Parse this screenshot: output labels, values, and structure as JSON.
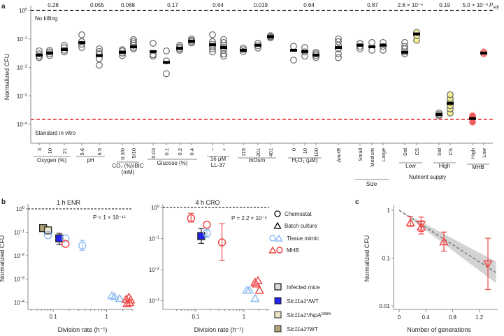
{
  "panel_labels": {
    "a": "a",
    "b": "b",
    "c": "c"
  },
  "colors": {
    "grey": "#666666",
    "yellow": "#f5ef8a",
    "red": "#f04848",
    "lightblue": "#8fbdf0",
    "blue": "#2222ee",
    "infected": "#d8d8d8",
    "hipA": "#ece5c8",
    "slc_r": "#b3a578"
  },
  "chart_data": [
    {
      "id": "a",
      "type": "scatter",
      "ylabel": "Normalized CFU",
      "yscale": "log",
      "ylim": [
        3e-05,
        1
      ],
      "ytick_labels": [
        "10^0",
        "10^-1",
        "10^-2",
        "10^-3",
        "10^-4"
      ],
      "ref_lines": [
        {
          "label": "No killing",
          "value": 1,
          "color": "#000000"
        },
        {
          "label": "Standard in vitro",
          "value": 0.00015,
          "color": "#f02020"
        }
      ],
      "p_adj_label": "P",
      "p_adj_sub": "adj",
      "p_values": [
        "0.28",
        "0.055",
        "0.068",
        "0.17",
        "0.64",
        "0.019",
        "0.64",
        "0.87",
        "2.6 × 10⁻⁶",
        "0.19",
        "5.0 × 10⁻⁹"
      ],
      "columns": [
        {
          "label": "3",
          "median": 0.027,
          "points": [
            0.022,
            0.025,
            0.03,
            0.038
          ],
          "color": "grey"
        },
        {
          "label": "10",
          "median": 0.032,
          "points": [
            0.026,
            0.03,
            0.035,
            0.04
          ],
          "color": "grey"
        },
        {
          "label": "21",
          "median": 0.042,
          "points": [
            0.035,
            0.04,
            0.05,
            0.06
          ],
          "color": "grey"
        },
        {
          "label": "5.6",
          "median": 0.074,
          "points": [
            0.05,
            0.065,
            0.08,
            0.14
          ],
          "color": "grey"
        },
        {
          "label": "6.5",
          "median": 0.026,
          "points": [
            0.012,
            0.02,
            0.03,
            0.036,
            0.045
          ],
          "color": "grey"
        },
        {
          "label": "0.3/0",
          "median": 0.034,
          "points": [
            0.026,
            0.032,
            0.038,
            0.042
          ],
          "color": "grey"
        },
        {
          "label": "5/10",
          "median": 0.053,
          "points": [
            0.045,
            0.05,
            0.06,
            0.07,
            0.08,
            0.095
          ],
          "color": "grey"
        },
        {
          "label": "0.03",
          "median": 0.036,
          "points": [
            0.025,
            0.028,
            0.07
          ],
          "color": "grey"
        },
        {
          "label": "0.1",
          "median": 0.015,
          "points": [
            0.006,
            0.017,
            0.038
          ],
          "color": "grey"
        },
        {
          "label": "0.2",
          "median": 0.047,
          "points": [
            0.04,
            0.045,
            0.052,
            0.06
          ],
          "color": "grey"
        },
        {
          "label": "0.4",
          "median": 0.083,
          "points": [
            0.072,
            0.08,
            0.09,
            0.1
          ],
          "color": "grey"
        },
        {
          "label": "−",
          "median": 0.063,
          "points": [
            0.035,
            0.045,
            0.055,
            0.065,
            0.08,
            0.14
          ],
          "color": "grey"
        },
        {
          "label": "+",
          "median": 0.05,
          "points": [
            0.025,
            0.03,
            0.04,
            0.05,
            0.06,
            0.075,
            0.095
          ],
          "color": "grey"
        },
        {
          "label": "115",
          "median": 0.04,
          "points": [
            0.036,
            0.042,
            0.048
          ],
          "color": "grey"
        },
        {
          "label": "201",
          "median": 0.06,
          "points": [
            0.048,
            0.058,
            0.07
          ],
          "color": "grey"
        },
        {
          "label": "401",
          "median": 0.12,
          "points": [
            0.11,
            0.12,
            0.13
          ],
          "color": "grey"
        },
        {
          "label": "0",
          "median": 0.04,
          "points": [
            0.018,
            0.055
          ],
          "color": "grey"
        },
        {
          "label": "10",
          "median": 0.036,
          "points": [
            0.025,
            0.035,
            0.05
          ],
          "color": "grey"
        },
        {
          "label": "100",
          "median": 0.027,
          "points": [
            0.022,
            0.026,
            0.03,
            0.034
          ],
          "color": "grey"
        },
        {
          "label": "ΔacrB",
          "median": 0.05,
          "points": [
            0.022,
            0.03,
            0.045,
            0.06,
            0.08,
            0.1
          ],
          "color": "grey"
        },
        {
          "label": "Small",
          "median": 0.06,
          "points": [
            0.045,
            0.055,
            0.07
          ],
          "color": "grey"
        },
        {
          "label": "Medium",
          "median": 0.053,
          "points": [
            0.04,
            0.075
          ],
          "color": "grey"
        },
        {
          "label": "Large",
          "median": 0.06,
          "points": [
            0.04,
            0.055,
            0.075
          ],
          "color": "grey"
        },
        {
          "label": "Std",
          "median": 0.034,
          "points": [
            0.03,
            0.035,
            0.045,
            0.055,
            0.075
          ],
          "color": "grey"
        },
        {
          "label": "CS",
          "median": 0.15,
          "points": [
            0.09,
            0.13,
            0.17
          ],
          "color": "yellow"
        },
        {
          "label": "Std",
          "median": 0.00022,
          "points": [
            0.0002,
            0.00022,
            0.00025
          ],
          "color": "grey"
        },
        {
          "label": "CS",
          "median": 0.00055,
          "points": [
            0.00025,
            0.00035,
            0.00045,
            0.0006,
            0.0008,
            0.0011
          ],
          "color": "yellow"
        },
        {
          "label": "High",
          "median": 0.00016,
          "points": [
            0.00012,
            0.0002
          ],
          "color": "red"
        },
        {
          "label": "Low",
          "median": 0.032,
          "points": [
            0.03,
            0.035
          ],
          "color": "red",
          "filled": true
        }
      ],
      "groups": [
        {
          "label": "Oxygen (%)"
        },
        {
          "label": "pH"
        },
        {
          "label": "CO₂ (%)/BIC",
          "label2": "(mM)"
        },
        {
          "label": "Glucose (%)"
        },
        {
          "label": "16 µM",
          "label2": "LL-37"
        },
        {
          "label": "mOsm"
        },
        {
          "label": "H₂O₂ (µM)"
        },
        {
          "label": "Size"
        },
        {
          "label": "Low"
        },
        {
          "label": "High"
        },
        {
          "label": "MHB"
        }
      ],
      "supergroup": "Nutrient supply"
    },
    {
      "id": "b1",
      "type": "scatter",
      "title": "1 h ENR",
      "xlabel": "Division rate (h⁻¹)",
      "ylabel": "Normalized CFU",
      "xscale": "log",
      "yscale": "log",
      "xtick_labels": [
        "0.1",
        "1"
      ],
      "ytick_labels": [
        "10^0",
        "10^-1",
        "10^-2",
        "10^-3",
        "10^-4"
      ],
      "annotation": "P < 1 × 10⁻¹⁵",
      "points": [
        {
          "x": 0.065,
          "y": 0.15,
          "shape": "square",
          "color": "slc_r"
        },
        {
          "x": 0.08,
          "y": 0.12,
          "shape": "square",
          "color": "hipA"
        },
        {
          "x": 0.08,
          "y": 0.075,
          "shape": "circle",
          "color": "lightblue"
        },
        {
          "x": 0.13,
          "y": 0.055,
          "shape": "square",
          "color": "blue",
          "err": [
            0.03,
            0.09
          ]
        },
        {
          "x": 0.17,
          "y": 0.055,
          "shape": "circle",
          "color": "lightblue"
        },
        {
          "x": 0.17,
          "y": 0.032,
          "shape": "circle",
          "color": "red"
        },
        {
          "x": 0.35,
          "y": 0.027,
          "shape": "circle",
          "color": "lightblue",
          "err": [
            0.017,
            0.045
          ]
        },
        {
          "x": 1.25,
          "y": 0.0002,
          "shape": "triangle",
          "color": "lightblue"
        },
        {
          "x": 1.4,
          "y": 0.00018,
          "shape": "triangle",
          "color": "lightblue"
        },
        {
          "x": 1.75,
          "y": 0.00015,
          "shape": "triangle",
          "color": "lightblue"
        },
        {
          "x": 2.3,
          "y": 0.00014,
          "shape": "triangle",
          "color": "red"
        },
        {
          "x": 2.6,
          "y": 0.00017,
          "shape": "triangle",
          "color": "red"
        },
        {
          "x": 2.8,
          "y": 0.00013,
          "shape": "triangle",
          "color": "red"
        },
        {
          "x": 2.4,
          "y": 9e-05,
          "shape": "triangle",
          "color": "red"
        },
        {
          "x": 2.7,
          "y": 0.0001,
          "shape": "triangle",
          "color": "red"
        }
      ]
    },
    {
      "id": "b2",
      "type": "scatter",
      "title": "4 h CRO",
      "xlabel": "Division rate (h⁻¹)",
      "xscale": "log",
      "yscale": "log",
      "xtick_labels": [
        "0.1",
        "1"
      ],
      "ytick_labels": [
        "10^0",
        "10^-1",
        "10^-2",
        "10^-3"
      ],
      "annotation": "P = 2.2 × 10⁻⁶",
      "points": [
        {
          "x": 0.08,
          "y": 0.45,
          "shape": "circle",
          "color": "red",
          "err": [
            0.34,
            0.65
          ]
        },
        {
          "x": 0.17,
          "y": 0.28,
          "shape": "circle",
          "color": "red"
        },
        {
          "x": 0.13,
          "y": 0.12,
          "shape": "square",
          "color": "blue",
          "err": [
            0.07,
            0.21
          ]
        },
        {
          "x": 0.17,
          "y": 0.15,
          "shape": "circle",
          "color": "lightblue",
          "err": [
            0.11,
            0.2
          ]
        },
        {
          "x": 0.35,
          "y": 0.075,
          "shape": "circle",
          "color": "red",
          "err": [
            0.02,
            0.3
          ]
        },
        {
          "x": 1.15,
          "y": 0.0022,
          "shape": "triangle",
          "color": "lightblue"
        },
        {
          "x": 1.28,
          "y": 0.0022,
          "shape": "triangle",
          "color": "lightblue"
        },
        {
          "x": 1.7,
          "y": 0.0012,
          "shape": "triangle",
          "color": "lightblue"
        },
        {
          "x": 1.7,
          "y": 0.004,
          "shape": "triangle",
          "color": "red"
        },
        {
          "x": 1.95,
          "y": 0.0045,
          "shape": "triangle",
          "color": "red"
        },
        {
          "x": 1.8,
          "y": 0.0035,
          "shape": "triangle",
          "color": "red"
        },
        {
          "x": 2.1,
          "y": 0.0022,
          "shape": "triangle",
          "color": "red"
        }
      ]
    },
    {
      "id": "c",
      "type": "scatter",
      "xlabel": "Number of generations",
      "ylabel": "Normalized CFU",
      "yscale": "log",
      "xtick_labels": [
        "0",
        "0.4",
        "0.8",
        "1.2"
      ],
      "ytick_labels": [
        "1",
        "0.1",
        "0.01"
      ],
      "fit": {
        "x": [
          0,
          1.45
        ],
        "y": [
          1.0,
          0.05
        ],
        "band_low": [
          1.0,
          0.03
        ],
        "band_high": [
          1.0,
          0.085
        ]
      },
      "points": [
        {
          "x": 0.17,
          "y": 0.55,
          "shape": "triangle",
          "err": [
            0.46,
            0.75
          ]
        },
        {
          "x": 0.33,
          "y": 0.45,
          "shape": "triangle",
          "err": [
            0.32,
            0.6
          ]
        },
        {
          "x": 0.33,
          "y": 0.5,
          "shape": "triangle-down",
          "err": [
            0.36,
            0.72
          ]
        },
        {
          "x": 0.67,
          "y": 0.22,
          "shape": "triangle",
          "err": [
            0.14,
            0.35
          ]
        },
        {
          "x": 1.33,
          "y": 0.075,
          "shape": "triangle-down",
          "err": [
            0.022,
            0.26
          ]
        }
      ]
    }
  ],
  "legend": {
    "shapes": [
      {
        "label": "Chemostat"
      },
      {
        "label": "Batch culture"
      },
      {
        "label": "Tissue mimic"
      },
      {
        "label": "MHB"
      }
    ],
    "hosts": [
      {
        "label": "Infected mice"
      },
      {
        "label": "Slc11a1",
        "sup": "s",
        "suffix": "/WT"
      },
      {
        "label": "Slc11a1",
        "sup": "s",
        "suffix": "/hipA",
        "sup2": "D88N"
      },
      {
        "label": "Slc11a1r",
        "sup": "r",
        "suffix": "/WT"
      }
    ]
  }
}
